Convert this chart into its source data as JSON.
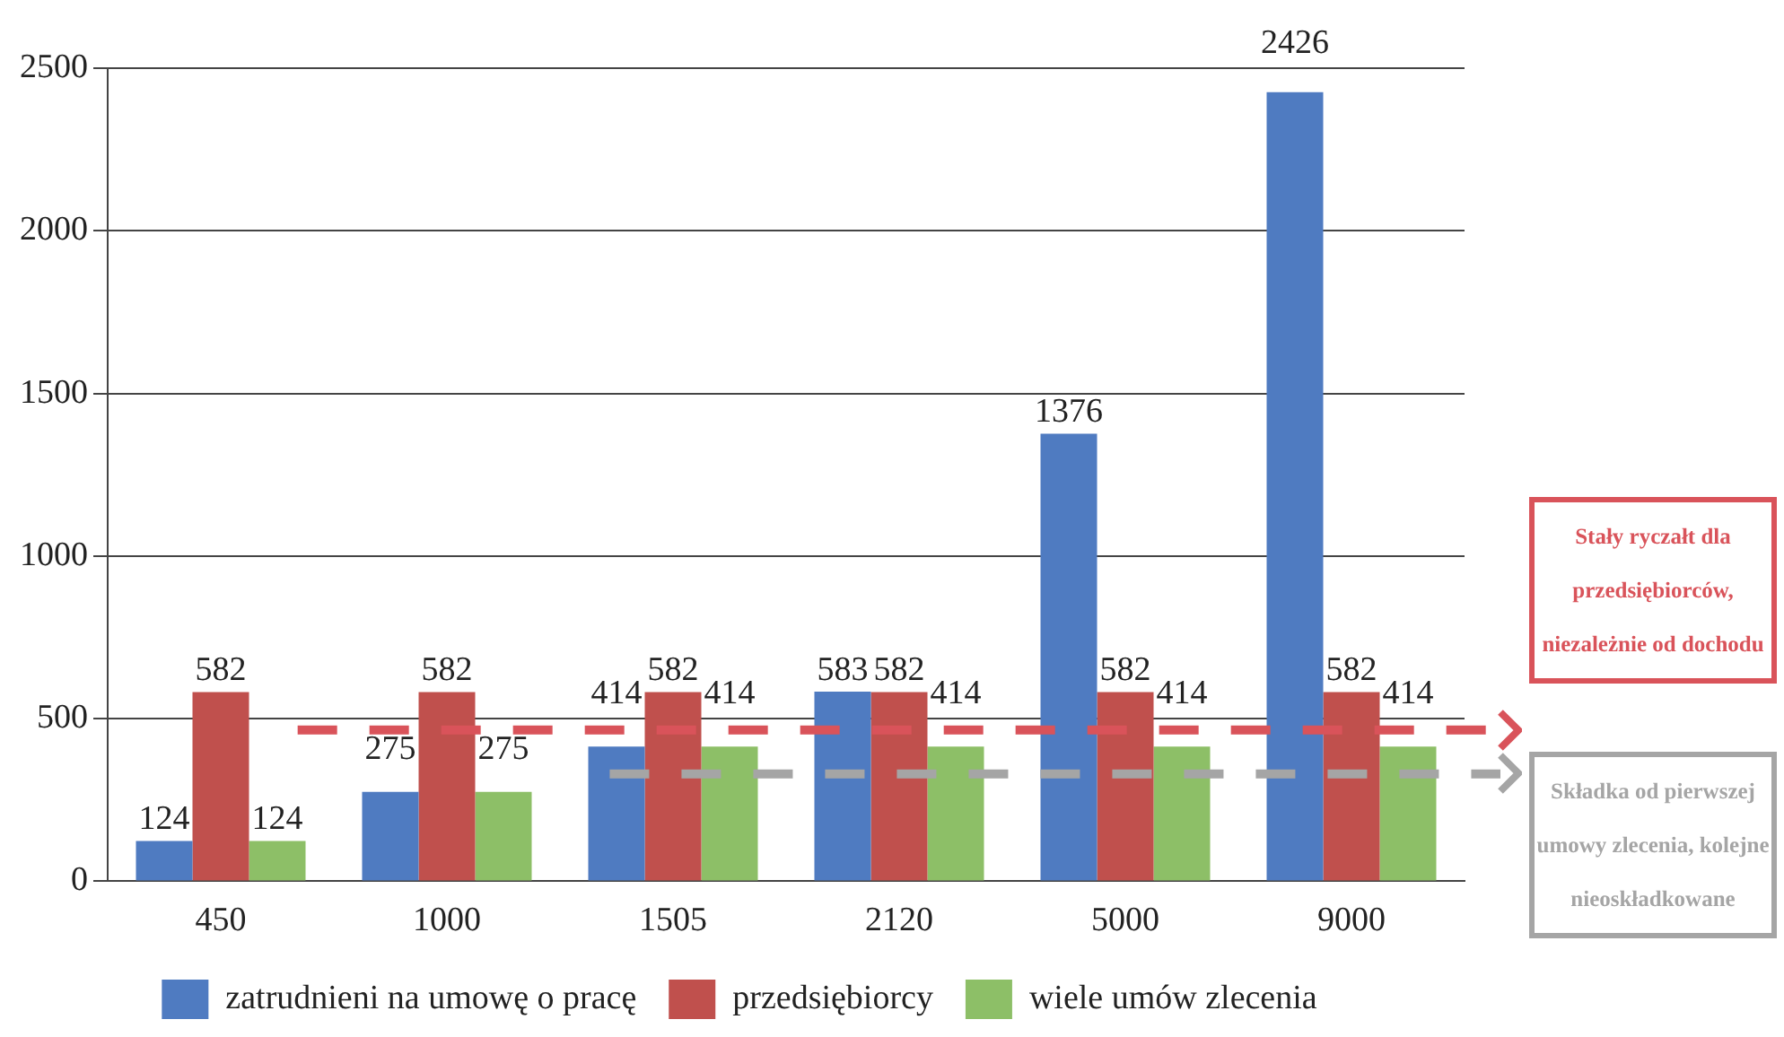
{
  "chart_data": {
    "type": "bar",
    "categories": [
      "450",
      "1000",
      "1505",
      "2120",
      "5000",
      "9000"
    ],
    "series": [
      {
        "name": "zatrudnieni na umowę o pracę",
        "color": "#4f7bc1",
        "values": [
          124,
          275,
          414,
          583,
          1376,
          2426
        ]
      },
      {
        "name": "przedsiębiorcy",
        "color": "#c0504d",
        "values": [
          582,
          582,
          582,
          582,
          582,
          582
        ]
      },
      {
        "name": "wiele umów zlecenia",
        "color": "#8dbf67",
        "values": [
          124,
          275,
          414,
          414,
          414,
          414
        ]
      }
    ],
    "ylim": [
      0,
      2500
    ],
    "yticks": [
      0,
      500,
      1000,
      1500,
      2000,
      2500
    ],
    "grid": "y",
    "data_labels": true,
    "legend": "bottom",
    "ref_lines": [
      {
        "axis": "y",
        "value": 465,
        "label": "Stały ryczałt dla przedsiębiorców, niezależnie od dochodu",
        "color": "#d9535a",
        "line_style": "dashed"
      },
      {
        "axis": "y",
        "value": 330,
        "label": "Składka od pierwszej umowy zlecenia, kolejne nieoskładkowane",
        "color": "#a5a5a5",
        "line_style": "dashed"
      }
    ]
  }
}
